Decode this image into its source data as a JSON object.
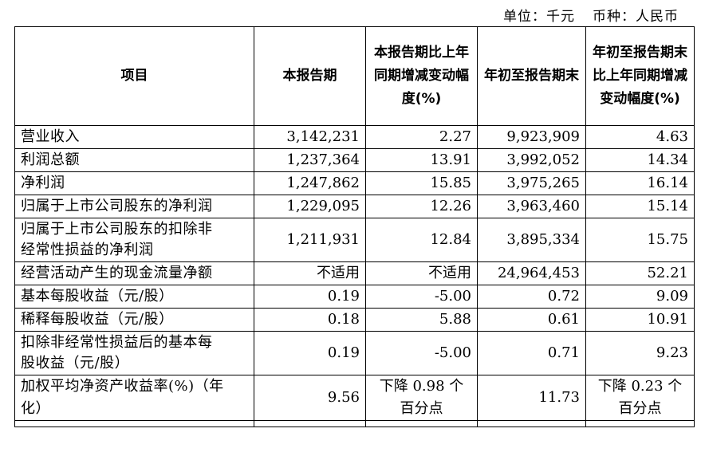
{
  "unit_note": {
    "unit": "单位：千元",
    "currency": "币种：人民币"
  },
  "table": {
    "headers": [
      "项目",
      "本报告期",
      "本报告期比上年同期增减变动幅度(%)",
      "年初至报告期末",
      "年初至报告期末比上年同期增减变动幅度(%)"
    ],
    "rows": [
      {
        "item": "营业收入",
        "current": "3,142,231",
        "current_change": "2.27",
        "ytd": "9,923,909",
        "ytd_change": "4.63"
      },
      {
        "item": "利润总额",
        "current": "1,237,364",
        "current_change": "13.91",
        "ytd": "3,992,052",
        "ytd_change": "14.34"
      },
      {
        "item": "净利润",
        "current": "1,247,862",
        "current_change": "15.85",
        "ytd": "3,975,265",
        "ytd_change": "16.14"
      },
      {
        "item": "归属于上市公司股东的净利润",
        "current": "1,229,095",
        "current_change": "12.26",
        "ytd": "3,963,460",
        "ytd_change": "15.14"
      },
      {
        "item_line1": "归属于上市公司股东的扣除非",
        "item_line2": "经常性损益的净利润",
        "current": "1,211,931",
        "current_change": "12.84",
        "ytd": "3,895,334",
        "ytd_change": "15.75"
      },
      {
        "item": "经营活动产生的现金流量净额",
        "current": "不适用",
        "current_change": "不适用",
        "ytd": "24,964,453",
        "ytd_change": "52.21"
      },
      {
        "item": "基本每股收益（元/股）",
        "current": "0.19",
        "current_change": "-5.00",
        "ytd": "0.72",
        "ytd_change": "9.09"
      },
      {
        "item": "稀释每股收益（元/股）",
        "current": "0.18",
        "current_change": "5.88",
        "ytd": "0.61",
        "ytd_change": "10.91"
      },
      {
        "item_line1": "扣除非经常性损益后的基本每",
        "item_line2": "股收益（元/股）",
        "current": "0.19",
        "current_change": "-5.00",
        "ytd": "0.71",
        "ytd_change": "9.23"
      },
      {
        "item_line1": "加权平均净资产收益率(%)（年",
        "item_line2": "化）",
        "current": "9.56",
        "current_change_line1": "下降 0.98 个",
        "current_change_line2": "百分点",
        "ytd": "11.73",
        "ytd_change_line1": "下降 0.23 个",
        "ytd_change_line2": "百分点"
      }
    ]
  }
}
